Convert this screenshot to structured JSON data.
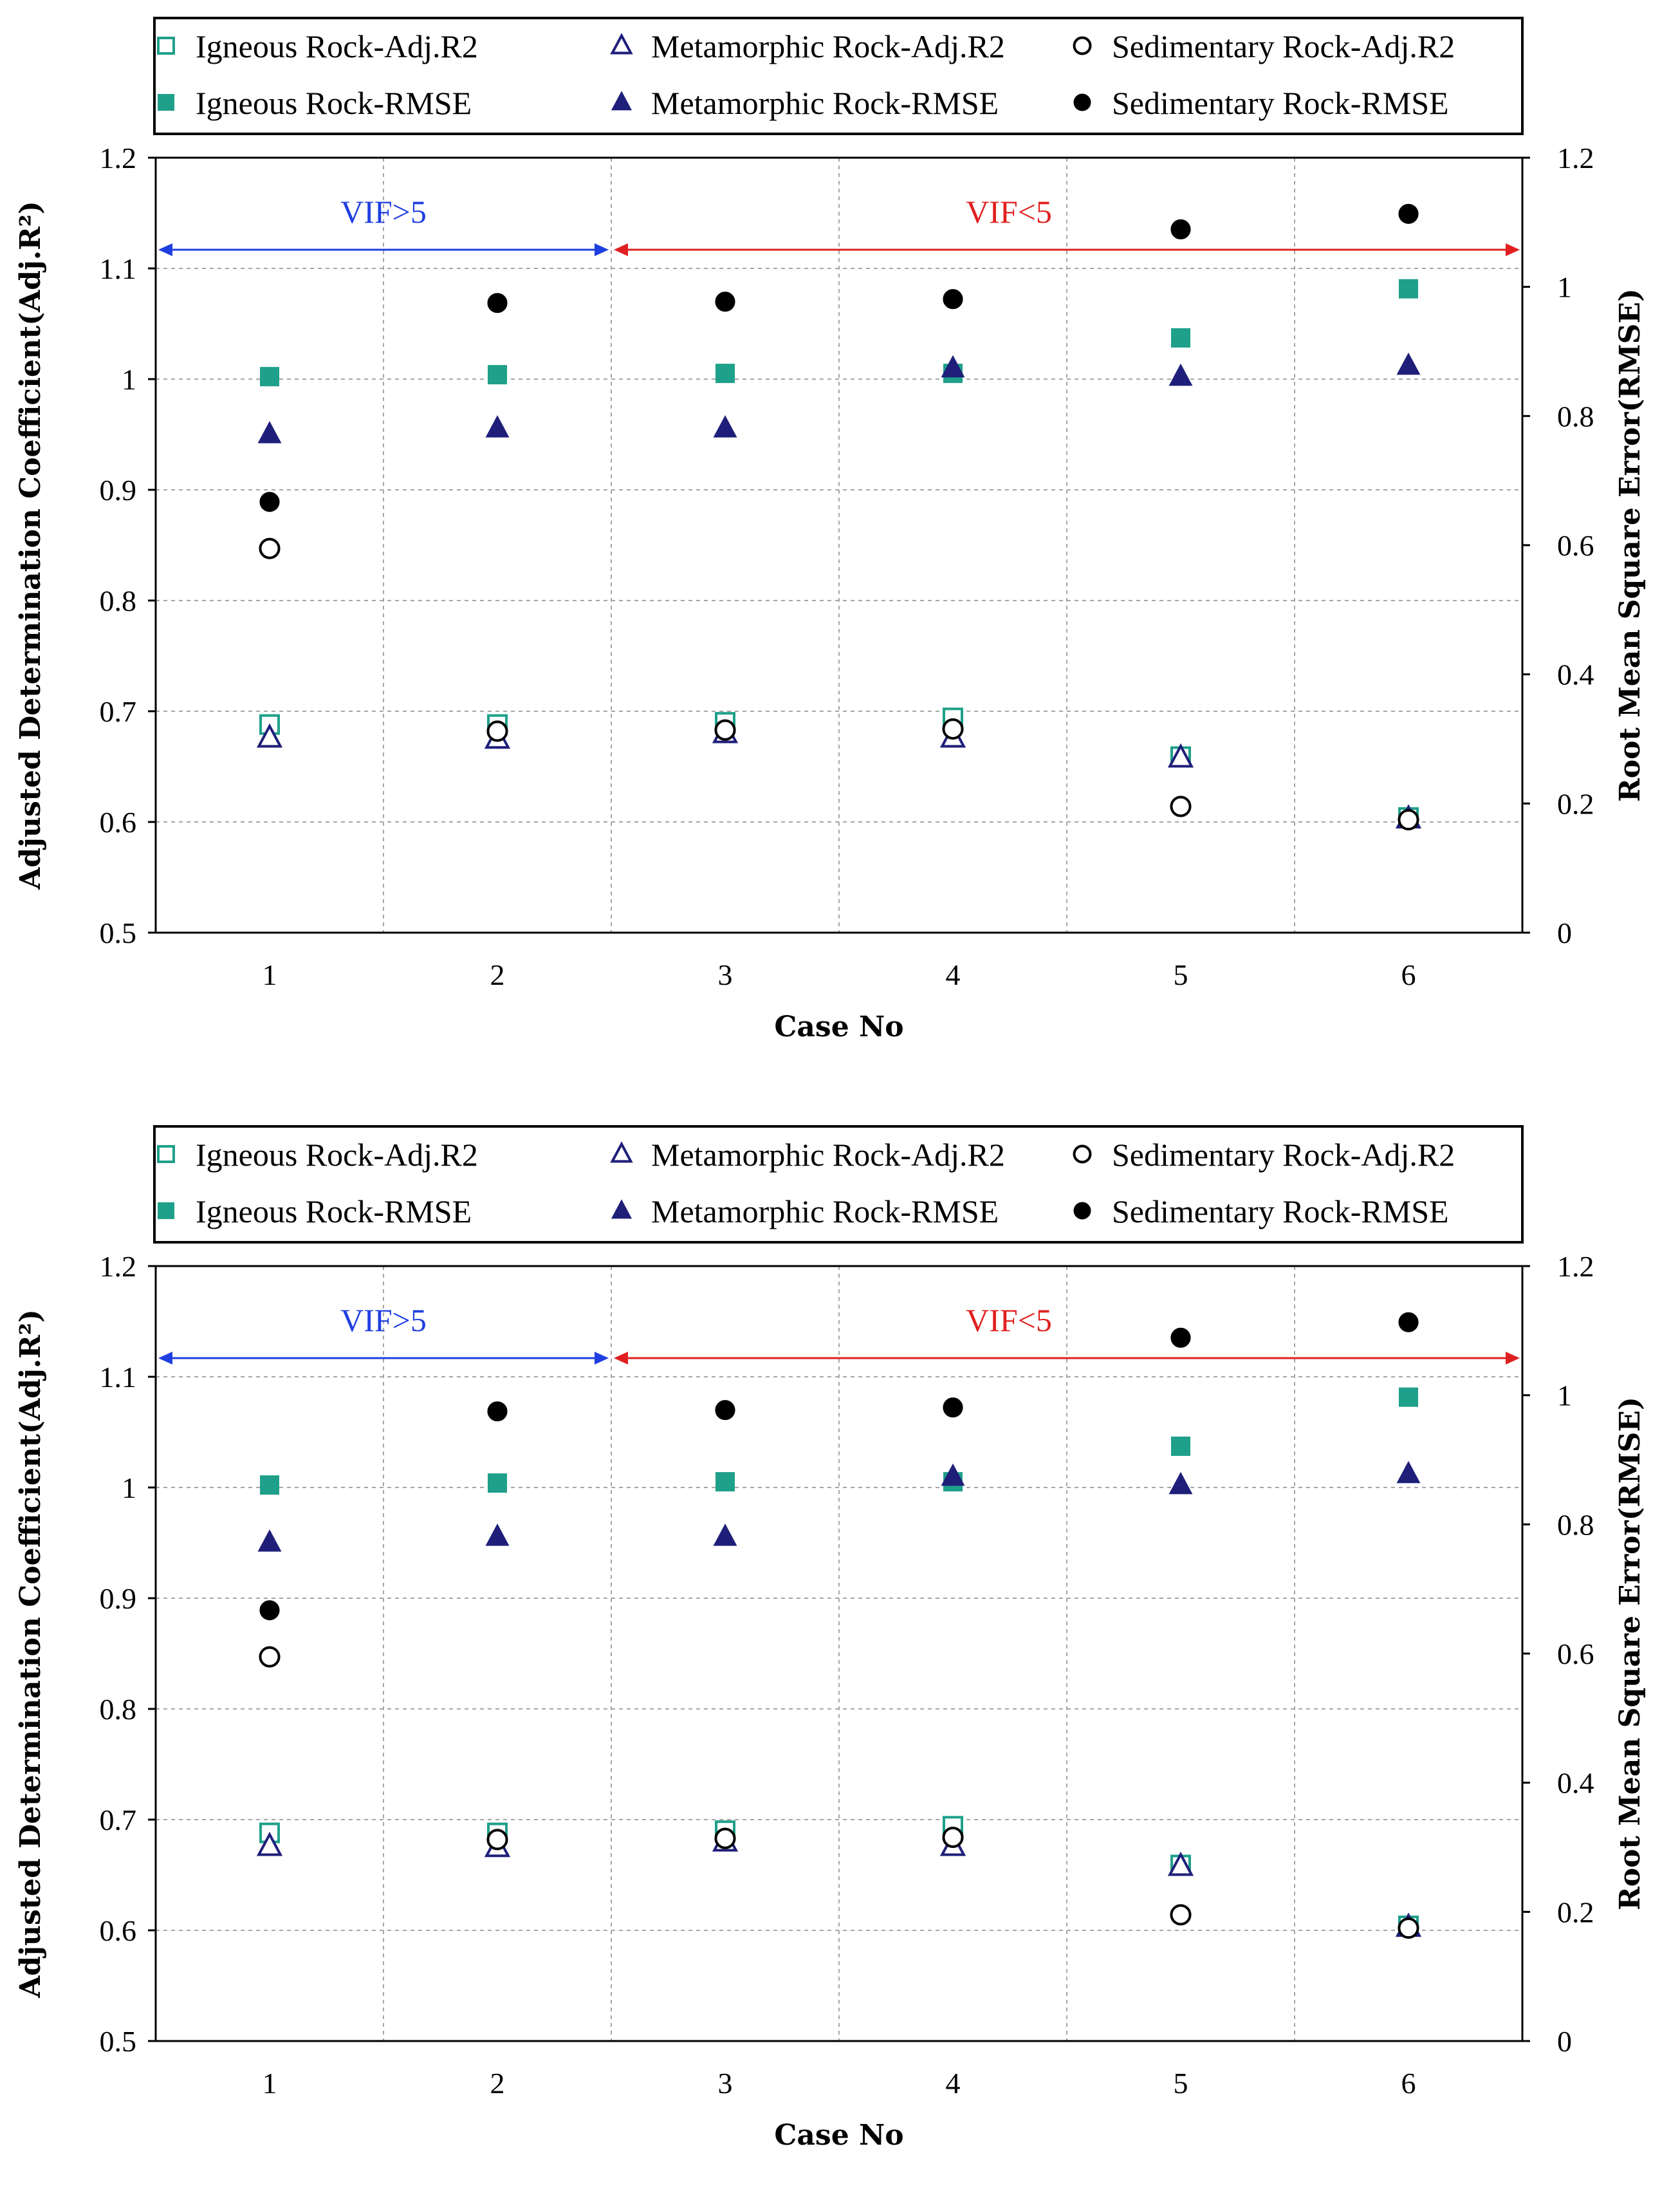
{
  "colors": {
    "igneous": "#1fa08a",
    "metamorphic": "#1f1f7a",
    "sedimentary": "#000000",
    "vif_gt": "#1f3fe0",
    "vif_lt": "#e02020",
    "grid": "#a6a6a6"
  },
  "chart_data": [
    {
      "type": "scatter",
      "title": "",
      "xlabel": "Case No",
      "ylabel": "Adjusted Determination Coefficient(Adj.R²)",
      "y2label": "Root Mean Square Error(RMSE)",
      "categories": [
        "1",
        "2",
        "3",
        "4",
        "5",
        "6"
      ],
      "x": [
        1,
        2,
        3,
        4,
        5,
        6
      ],
      "xlim": [
        0.5,
        6.5
      ],
      "ylim": [
        0.5,
        1.2
      ],
      "y2lim": [
        0,
        1.2
      ],
      "yticks": [
        "0.5",
        "0.6",
        "0.7",
        "0.8",
        "0.9",
        "1",
        "1.1",
        "1.2"
      ],
      "y2ticks": [
        "0",
        "0.2",
        "0.4",
        "0.6",
        "0.8",
        "1",
        "1.2"
      ],
      "grid": true,
      "legend_position": "top",
      "regions": [
        {
          "label": "VIF>5",
          "from": 0.5,
          "to": 2.5,
          "color": "vif_gt"
        },
        {
          "label": "VIF<5",
          "from": 2.5,
          "to": 6.5,
          "color": "vif_lt"
        }
      ],
      "series": [
        {
          "name": "Igneous Rock-Adj.R2",
          "axis": "left",
          "marker": "square-open",
          "color": "igneous",
          "values": [
            0.688,
            0.688,
            0.69,
            0.694,
            0.659,
            0.604
          ]
        },
        {
          "name": "Metamorphic Rock-Adj.R2",
          "axis": "left",
          "marker": "triangle-open",
          "color": "metamorphic",
          "values": [
            0.676,
            0.675,
            0.68,
            0.676,
            0.658,
            0.603
          ]
        },
        {
          "name": "Sedimentary Rock-Adj.R2",
          "axis": "left",
          "marker": "circle-open",
          "color": "sedimentary",
          "values": [
            0.847,
            0.682,
            0.683,
            0.684,
            0.614,
            0.602
          ]
        },
        {
          "name": "Igneous Rock-RMSE",
          "axis": "right",
          "marker": "square-filled",
          "color": "igneous",
          "values": [
            0.861,
            0.864,
            0.866,
            0.866,
            0.921,
            0.997
          ]
        },
        {
          "name": "Metamorphic Rock-RMSE",
          "axis": "right",
          "marker": "triangle-filled",
          "color": "metamorphic",
          "values": [
            0.772,
            0.781,
            0.781,
            0.874,
            0.861,
            0.878
          ]
        },
        {
          "name": "Sedimentary Rock-RMSE",
          "axis": "right",
          "marker": "circle-filled",
          "color": "sedimentary",
          "values": [
            0.667,
            0.975,
            0.977,
            0.981,
            1.089,
            1.113
          ]
        }
      ]
    },
    {
      "type": "scatter",
      "title": "",
      "xlabel": "Case No",
      "ylabel": "Adjusted Determination Coefficient(Adj.R²)",
      "y2label": "Root Mean Square Error(RMSE)",
      "categories": [
        "1",
        "2",
        "3",
        "4",
        "5",
        "6"
      ],
      "x": [
        1,
        2,
        3,
        4,
        5,
        6
      ],
      "xlim": [
        0.5,
        6.5
      ],
      "ylim": [
        0.5,
        1.2
      ],
      "y2lim": [
        0,
        1.2
      ],
      "yticks": [
        "0.5",
        "0.6",
        "0.7",
        "0.8",
        "0.9",
        "1",
        "1.1",
        "1.2"
      ],
      "y2ticks": [
        "0",
        "0.2",
        "0.4",
        "0.6",
        "0.8",
        "1",
        "1.2"
      ],
      "grid": true,
      "legend_position": "top",
      "regions": [
        {
          "label": "VIF>5",
          "from": 0.5,
          "to": 2.5,
          "color": "vif_gt"
        },
        {
          "label": "VIF<5",
          "from": 2.5,
          "to": 6.5,
          "color": "vif_lt"
        }
      ],
      "series": [
        {
          "name": "Igneous Rock-Adj.R2",
          "axis": "left",
          "marker": "square-open",
          "color": "igneous",
          "values": [
            0.688,
            0.688,
            0.69,
            0.694,
            0.659,
            0.604
          ]
        },
        {
          "name": "Metamorphic Rock-Adj.R2",
          "axis": "left",
          "marker": "triangle-open",
          "color": "metamorphic",
          "values": [
            0.676,
            0.675,
            0.68,
            0.676,
            0.658,
            0.603
          ]
        },
        {
          "name": "Sedimentary Rock-Adj.R2",
          "axis": "left",
          "marker": "circle-open",
          "color": "sedimentary",
          "values": [
            0.847,
            0.682,
            0.683,
            0.684,
            0.614,
            0.602
          ]
        },
        {
          "name": "Igneous Rock-RMSE",
          "axis": "right",
          "marker": "square-filled",
          "color": "igneous",
          "values": [
            0.861,
            0.864,
            0.866,
            0.866,
            0.921,
            0.997
          ]
        },
        {
          "name": "Metamorphic Rock-RMSE",
          "axis": "right",
          "marker": "triangle-filled",
          "color": "metamorphic",
          "values": [
            0.772,
            0.781,
            0.781,
            0.874,
            0.861,
            0.878
          ]
        },
        {
          "name": "Sedimentary Rock-RMSE",
          "axis": "right",
          "marker": "circle-filled",
          "color": "sedimentary",
          "values": [
            0.667,
            0.975,
            0.977,
            0.981,
            1.089,
            1.113
          ]
        }
      ]
    }
  ]
}
